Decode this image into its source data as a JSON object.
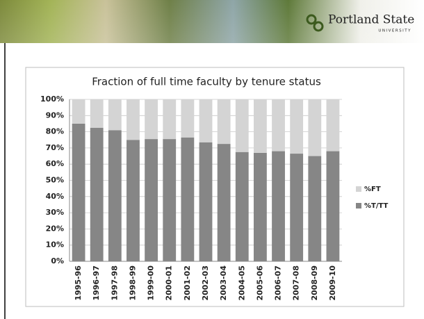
{
  "header": {
    "logo_text": "Portland State",
    "logo_subtext": "UNIVERSITY"
  },
  "chart_data": {
    "type": "stacked_bar",
    "title": "Fraction of full time faculty by tenure status",
    "categories": [
      "1995-96",
      "1996-97",
      "1997-98",
      "1998-99",
      "1999-00",
      "2000-01",
      "2001-02",
      "2002-03",
      "2003-04",
      "2004-05",
      "2005-06",
      "2006-07",
      "2007-08",
      "2008-09",
      "2009-10"
    ],
    "series": [
      {
        "name": "%T/TT",
        "color": "#868686",
        "values": [
          85,
          82.5,
          81,
          75,
          75.5,
          75.5,
          76.5,
          73.5,
          72.5,
          67.5,
          67,
          68,
          66.5,
          65,
          68
        ]
      },
      {
        "name": "%FT",
        "color": "#d4d4d4",
        "values": [
          15,
          17.5,
          19,
          25,
          24.5,
          24.5,
          23.5,
          26.5,
          27.5,
          32.5,
          33,
          32,
          33.5,
          35,
          32
        ]
      }
    ],
    "ylim": [
      0,
      100
    ],
    "yticks": [
      {
        "value": 0,
        "label": "0%"
      },
      {
        "value": 10,
        "label": "10%"
      },
      {
        "value": 20,
        "label": "20%"
      },
      {
        "value": 30,
        "label": "30%"
      },
      {
        "value": 40,
        "label": "40%"
      },
      {
        "value": 50,
        "label": "50%"
      },
      {
        "value": 60,
        "label": "60%"
      },
      {
        "value": 70,
        "label": "70%"
      },
      {
        "value": 80,
        "label": "80%"
      },
      {
        "value": 90,
        "label": "90%"
      },
      {
        "value": 100,
        "label": "100%"
      }
    ],
    "grid": true,
    "legend": "right"
  }
}
